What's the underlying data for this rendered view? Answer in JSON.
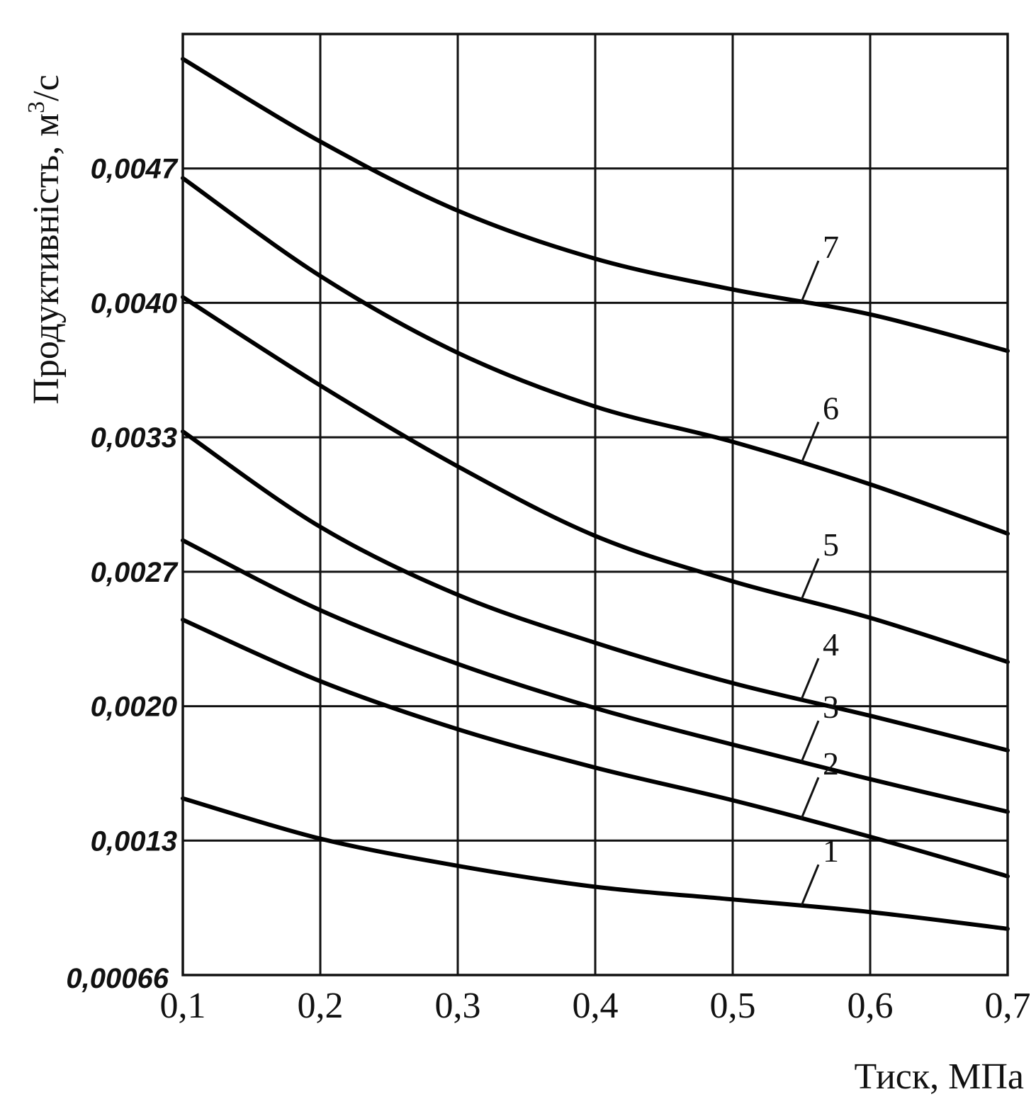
{
  "chart_data": {
    "type": "line",
    "xlabel": "Тиск, МПа",
    "ylabel": "Продуктивність, м",
    "ylabel_sup": "3",
    "ylabel_tail": "/с",
    "xlim": [
      0.1,
      0.7
    ],
    "ylim": [
      0.00066,
      0.00522
    ],
    "grid": true,
    "x_ticks": [
      0.1,
      0.2,
      0.3,
      0.4,
      0.5,
      0.6,
      0.7
    ],
    "x_tick_labels": [
      "0,1",
      "0,2",
      "0,3",
      "0,4",
      "0,5",
      "0,6",
      "0,7"
    ],
    "y_ticks": [
      0.00066,
      0.0013,
      0.002,
      0.0027,
      0.0033,
      0.004,
      0.0047
    ],
    "y_tick_labels": [
      "0,00066",
      "0,0013",
      "0,0020",
      "0,0027",
      "0,0033",
      "0,0040",
      "0,0047"
    ],
    "x": [
      0.1,
      0.2,
      0.3,
      0.4,
      0.5,
      0.6,
      0.7
    ],
    "series": [
      {
        "name": "1",
        "label_x": 0.55,
        "values": [
          0.00152,
          0.00131,
          0.00118,
          0.00108,
          0.00102,
          0.00096,
          0.00088
        ]
      },
      {
        "name": "2",
        "label_x": 0.55,
        "values": [
          0.00245,
          0.00213,
          0.00188,
          0.00168,
          0.00151,
          0.00132,
          0.00113
        ]
      },
      {
        "name": "3",
        "label_x": 0.55,
        "values": [
          0.00284,
          0.0025,
          0.00222,
          0.00199,
          0.0018,
          0.00162,
          0.00145
        ]
      },
      {
        "name": "4",
        "label_x": 0.55,
        "values": [
          0.00333,
          0.0029,
          0.00258,
          0.00233,
          0.00212,
          0.00195,
          0.00177
        ]
      },
      {
        "name": "5",
        "label_x": 0.55,
        "values": [
          0.00403,
          0.00357,
          0.00317,
          0.00286,
          0.00265,
          0.00246,
          0.00223
        ]
      },
      {
        "name": "6",
        "label_x": 0.55,
        "values": [
          0.00465,
          0.00414,
          0.00374,
          0.00346,
          0.00328,
          0.00309,
          0.00287
        ]
      },
      {
        "name": "7",
        "label_x": 0.55,
        "values": [
          0.00527,
          0.00484,
          0.00448,
          0.00423,
          0.00407,
          0.00394,
          0.00375
        ]
      }
    ]
  }
}
